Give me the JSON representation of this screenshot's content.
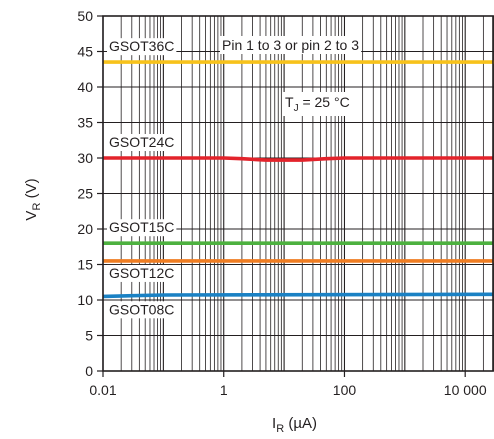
{
  "chart_data": {
    "type": "line",
    "x_scale": "log",
    "xlim": [
      0.01,
      30000
    ],
    "ylim": [
      0,
      50
    ],
    "x_ticks": [
      {
        "value": 0.01,
        "label": "0.01"
      },
      {
        "value": 1,
        "label": "1"
      },
      {
        "value": 100,
        "label": "100"
      },
      {
        "value": 10000,
        "label": "10 000"
      }
    ],
    "y_ticks": [
      {
        "value": 0,
        "label": "0"
      },
      {
        "value": 5,
        "label": "5"
      },
      {
        "value": 10,
        "label": "10"
      },
      {
        "value": 15,
        "label": "15"
      },
      {
        "value": 20,
        "label": "20"
      },
      {
        "value": 25,
        "label": "25"
      },
      {
        "value": 30,
        "label": "30"
      },
      {
        "value": 35,
        "label": "35"
      },
      {
        "value": 40,
        "label": "40"
      },
      {
        "value": 45,
        "label": "45"
      },
      {
        "value": 50,
        "label": "50"
      }
    ],
    "grid": true,
    "xlabel": {
      "main": "I",
      "sub": "R",
      "unit": " (µA)"
    },
    "ylabel": {
      "main": "V",
      "sub": "R",
      "unit": " (V)"
    },
    "annotations": {
      "pins": "Pin 1 to 3 or pin 2 to 3",
      "temp": {
        "main": "T",
        "sub": "J",
        "rest": " = 25 °C"
      }
    },
    "series": [
      {
        "name": "GSOT36C",
        "color": "#f7c21b",
        "x": [
          0.01,
          30000
        ],
        "y": [
          43.5,
          43.5
        ]
      },
      {
        "name": "GSOT24C",
        "color": "#e3232b",
        "x": [
          0.01,
          1,
          2,
          5,
          20,
          50,
          100,
          30000
        ],
        "y": [
          30.0,
          30.0,
          29.9,
          29.7,
          29.7,
          29.9,
          30.0,
          30.0
        ]
      },
      {
        "name": "GSOT15C",
        "color": "#4db13f",
        "x": [
          0.01,
          30000
        ],
        "y": [
          18.0,
          18.0
        ]
      },
      {
        "name": "GSOT12C",
        "color": "#ef7d22",
        "x": [
          0.01,
          30000
        ],
        "y": [
          15.5,
          15.5
        ]
      },
      {
        "name": "GSOT08C",
        "color": "#1a81c4",
        "x": [
          0.01,
          0.1,
          30000
        ],
        "y": [
          10.5,
          10.7,
          10.8
        ]
      }
    ]
  }
}
